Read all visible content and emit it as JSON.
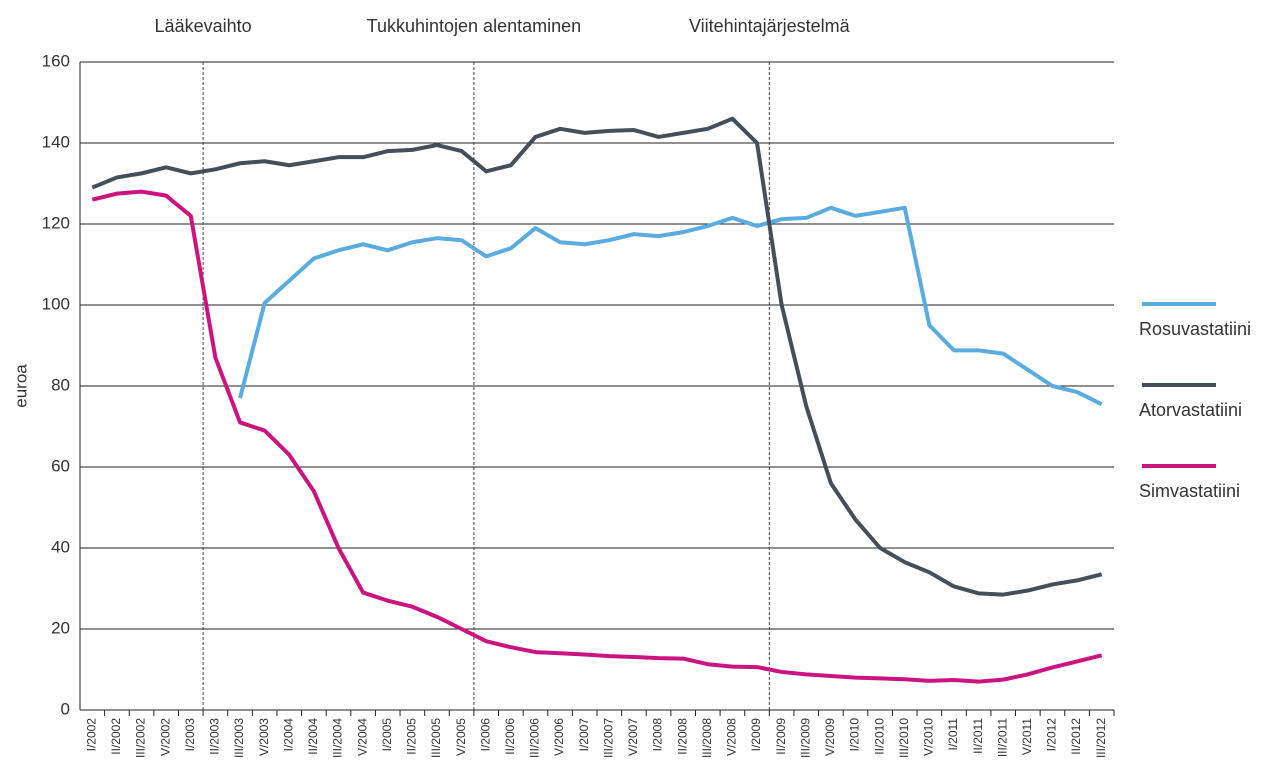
{
  "chart_data": {
    "type": "line",
    "ylabel": "euroa",
    "annotations": [
      "Lääkevaihto",
      "Tukkuhintojen alentaminen",
      "Viitehintajärjestelmä"
    ],
    "categories": [
      "I/2002",
      "II/2002",
      "III/2002",
      "V/2002",
      "I/2003",
      "II/2003",
      "III/2003",
      "V/2003",
      "I/2004",
      "II/2004",
      "III/2004",
      "V/2004",
      "I/2005",
      "II/2005",
      "III/2005",
      "V/2005",
      "I/2006",
      "II/2006",
      "III/2006",
      "V/2006",
      "I/2007",
      "III/2007",
      "V/2007",
      "I/2008",
      "II/2008",
      "III/2008",
      "V/2008",
      "I/2009",
      "II/2009",
      "III/2009",
      "V/2009",
      "I/2010",
      "II/2010",
      "III/2010",
      "V/2010",
      "I/2011",
      "II/2011",
      "III/2011",
      "V/2011",
      "I/2012",
      "II/2012",
      "III/2012"
    ],
    "series": [
      {
        "name": "Rosuvastatiini",
        "color": "#5aace0",
        "values": [
          null,
          null,
          null,
          null,
          null,
          null,
          77,
          100.5,
          106,
          111.5,
          113.5,
          115,
          113.5,
          115.5,
          116.5,
          116,
          112,
          114,
          119,
          115.5,
          115,
          116,
          117.5,
          117,
          118,
          119.5,
          121.5,
          119.5,
          121.2,
          121.5,
          124,
          122,
          123,
          124,
          95,
          88.8,
          88.8,
          88,
          84,
          80,
          78.5,
          75.5
        ]
      },
      {
        "name": "Atorvastatiini",
        "color": "#444f5a",
        "values": [
          129,
          131.5,
          132.5,
          134,
          132.5,
          133.5,
          135,
          135.5,
          134.5,
          135.5,
          136.5,
          136.5,
          138,
          138.3,
          139.5,
          138,
          133,
          134.5,
          141.5,
          143.5,
          142.5,
          143,
          143.2,
          141.5,
          142.5,
          143.5,
          146,
          140,
          100,
          75,
          56,
          47,
          40,
          36.5,
          34,
          30.5,
          28.8,
          28.5,
          29.5,
          31,
          32,
          33.5
        ]
      },
      {
        "name": "Simvastatiini",
        "color": "#cc1480",
        "values": [
          126,
          127.5,
          128,
          127,
          122,
          87,
          71,
          69,
          63,
          54,
          40,
          29,
          27,
          25.5,
          23,
          20,
          17,
          15.5,
          14.3,
          14,
          13.7,
          13.3,
          13.1,
          12.8,
          12.7,
          11.3,
          10.7,
          10.6,
          9.4,
          8.8,
          8.4,
          8,
          7.8,
          7.6,
          7.2,
          7.4,
          7,
          7.5,
          8.8,
          10.5,
          12,
          13.5
        ]
      }
    ],
    "ylim": [
      0,
      160
    ],
    "yticks": [
      0,
      20,
      40,
      60,
      80,
      100,
      120,
      140,
      160
    ],
    "grid": true,
    "legend": "right"
  }
}
